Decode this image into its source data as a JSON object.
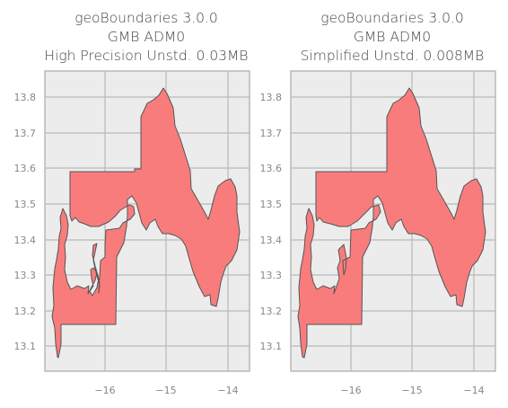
{
  "panels": [
    {
      "title_lines": [
        "geoBoundaries 3.0.0",
        "GMB ADM0",
        "High Precision Unstd. 0.03MB"
      ]
    },
    {
      "title_lines": [
        "geoBoundaries 3.0.0",
        "GMB ADM0",
        "Simplified Unstd. 0.008MB"
      ]
    }
  ],
  "axes": {
    "x_ticks": [
      "−16",
      "−15",
      "−14"
    ],
    "y_ticks": [
      "13.8",
      "13.7",
      "13.6",
      "13.5",
      "13.4",
      "13.3",
      "13.2",
      "13.1"
    ]
  },
  "colors": {
    "fill": "#f87c7c",
    "stroke": "#555555",
    "plot_bg": "#ececec",
    "grid": "#b8b8b8"
  }
}
